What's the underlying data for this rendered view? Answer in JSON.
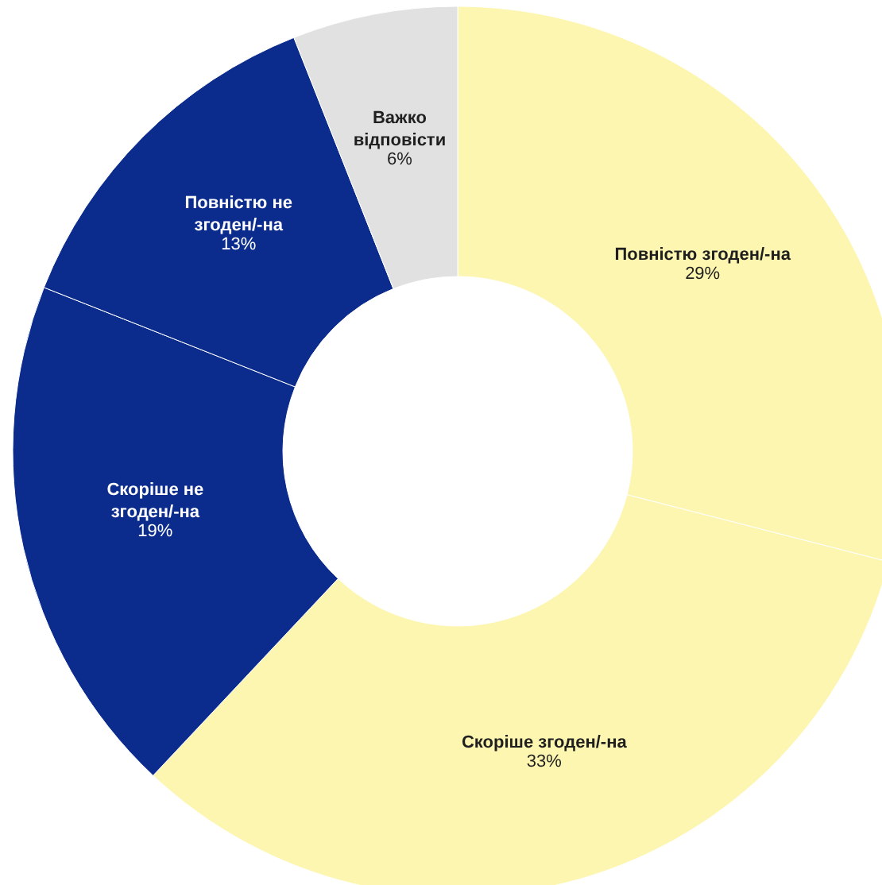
{
  "chart_data": {
    "type": "donut",
    "categories": [
      "Повністю згоден/-на",
      "Скоріше згоден/-на",
      "Скоріше не згоден/-на",
      "Повністю не згоден/-на",
      "Важко відповісти"
    ],
    "values": [
      29,
      33,
      19,
      13,
      6
    ],
    "colors": [
      "#fdf6b0",
      "#fdf6b0",
      "#0b2c8c",
      "#0b2c8c",
      "#e1e1e1"
    ],
    "value_labels": [
      "29%",
      "33%",
      "19%",
      "13%",
      "6%"
    ]
  }
}
